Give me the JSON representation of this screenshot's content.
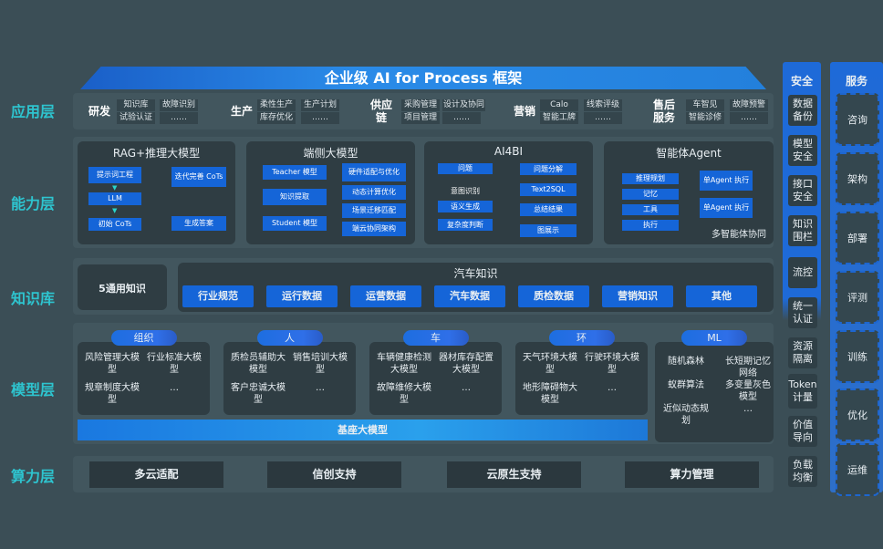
{
  "title": "企业级 AI for Process 框架",
  "layers": {
    "app": "应用层",
    "ability": "能力层",
    "knowledge": "知识库",
    "model": "模型层",
    "compute": "算力层"
  },
  "app_groups": [
    {
      "name": "研发",
      "cols": [
        [
          "知识库",
          "试验认证"
        ],
        [
          "故障识别",
          "……"
        ]
      ]
    },
    {
      "name": "生产",
      "cols": [
        [
          "柔性生产",
          "库存优化"
        ],
        [
          "生产计划",
          "……"
        ]
      ]
    },
    {
      "name": "供应链",
      "cols": [
        [
          "采购管理",
          "项目管理"
        ],
        [
          "设计及协同",
          "……"
        ]
      ]
    },
    {
      "name": "营销",
      "cols": [
        [
          "Calo",
          "智能工牌"
        ],
        [
          "线索评级",
          "……"
        ]
      ]
    },
    {
      "name": "售后服务",
      "cols": [
        [
          "车智见",
          "智能诊修"
        ],
        [
          "故障预警",
          "……"
        ]
      ]
    }
  ],
  "ability": {
    "rag": {
      "title": "RAG+推理大模型",
      "items": [
        "提示词工程",
        "LLM",
        "初始 CoTs",
        "迭代完善 CoTs",
        "生成答案"
      ]
    },
    "edge": {
      "title": "端侧大模型",
      "items": [
        "Teacher 模型",
        "知识提取",
        "Student 模型",
        "硬件适配与优化",
        "动态计算优化",
        "场景迁移匹配",
        "端云协同架构"
      ]
    },
    "ai4bi": {
      "title": "AI4BI",
      "items": [
        "问题",
        "意图识别",
        "语义生成",
        "复杂度判断",
        "问题分解",
        "Text2SQL",
        "总结结果",
        "图展示"
      ]
    },
    "agent": {
      "title": "智能体Agent",
      "items": [
        "推理规划",
        "记忆",
        "工具",
        "执行",
        "单Agent 执行",
        "单Agent 执行"
      ],
      "caption": "多智能体协同"
    }
  },
  "knowledge": {
    "general": "5通用知识",
    "auto_title": "汽车知识",
    "chips": [
      "行业规范",
      "运行数据",
      "运营数据",
      "汽车数据",
      "质检数据",
      "营销知识",
      "其他"
    ]
  },
  "models": [
    {
      "tag": "组织",
      "items": [
        "风险管理大模型",
        "行业标准大模型",
        "规章制度大模型",
        "…"
      ]
    },
    {
      "tag": "人",
      "items": [
        "质检员辅助大模型",
        "销售培训大模型",
        "客户忠诚大模型",
        "…"
      ]
    },
    {
      "tag": "车",
      "items": [
        "车辆健康检测大模型",
        "器材库存配置大模型",
        "故障维修大模型",
        "…"
      ]
    },
    {
      "tag": "环",
      "items": [
        "天气环境大模型",
        "行驶环境大模型",
        "地形障碍物大模型",
        "…"
      ]
    },
    {
      "tag": "ML",
      "items": [
        "随机森林",
        "长短期记忆网络",
        "蚁群算法",
        "多变量灰色模型",
        "近似动态规划",
        "…"
      ]
    }
  ],
  "base_model": "基座大模型",
  "compute": [
    "多云适配",
    "信创支持",
    "云原生支持",
    "算力管理"
  ],
  "security": {
    "title": "安全",
    "items": [
      "数据备份",
      "模型安全",
      "接口安全",
      "知识围栏",
      "流控",
      "统一认证",
      "资源隔离",
      "Token计量",
      "价值导向",
      "负载均衡"
    ]
  },
  "services": {
    "title": "服务",
    "items": [
      "咨询",
      "架构",
      "部署",
      "评测",
      "训练",
      "优化",
      "运维"
    ]
  },
  "colors": {
    "accent": "#1565d8",
    "label": "#2ec4cf",
    "background": "#3b4e56"
  }
}
